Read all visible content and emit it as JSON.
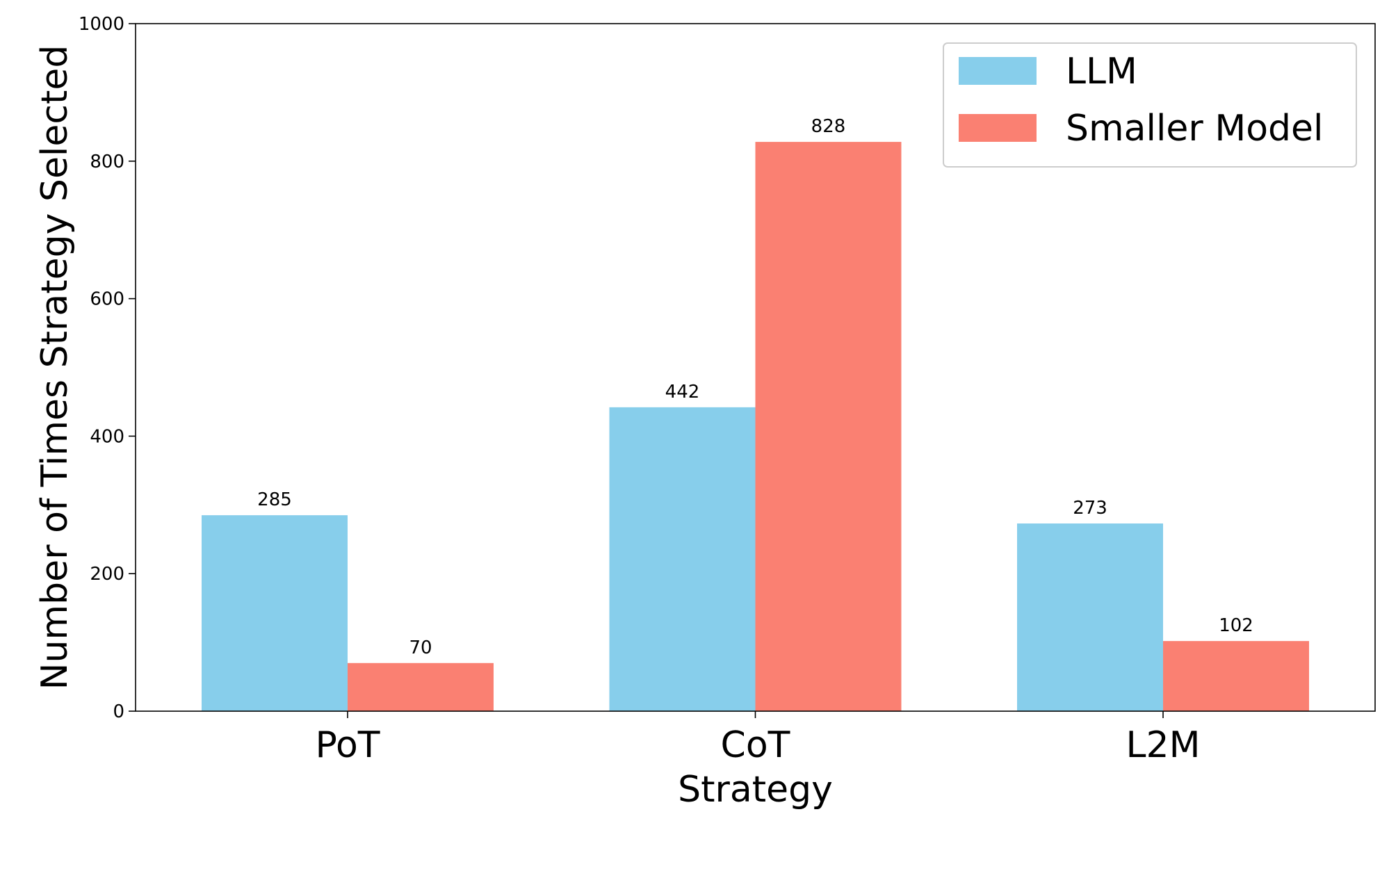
{
  "chart_data": {
    "type": "bar",
    "title": "",
    "xlabel": "Strategy",
    "ylabel": "Number of Times Strategy Selected",
    "categories": [
      "PoT",
      "CoT",
      "L2M"
    ],
    "series": [
      {
        "name": "LLM",
        "values": [
          285,
          442,
          273
        ],
        "color": "#87CEEB"
      },
      {
        "name": "Smaller Model",
        "values": [
          70,
          828,
          102
        ],
        "color": "#FA8072"
      }
    ],
    "ylim": [
      0,
      1000
    ],
    "yticks": [
      0,
      200,
      400,
      600,
      800,
      1000
    ],
    "data_labels": true,
    "grid": false,
    "legend_position": "top-right"
  }
}
